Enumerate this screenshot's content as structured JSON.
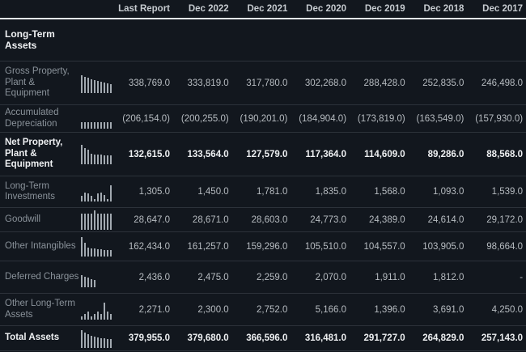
{
  "table": {
    "columns": [
      "Last Report",
      "Dec 2022",
      "Dec 2021",
      "Dec 2020",
      "Dec 2019",
      "Dec 2018",
      "Dec 2017"
    ],
    "section_title": "Long-Term Assets",
    "rows": [
      {
        "label": "Gross Property, Plant & Equipment",
        "values": [
          "338,769.0",
          "333,819.0",
          "317,780.0",
          "302,268.0",
          "288,428.0",
          "252,835.0",
          "246,498.0"
        ],
        "spark": [
          22,
          20,
          19,
          17,
          16,
          15,
          14,
          13,
          12,
          11
        ]
      },
      {
        "label": "Accumulated Depreciation",
        "values": [
          "(206,154.0)",
          "(200,255.0)",
          "(190,201.0)",
          "(184,904.0)",
          "(173,819.0)",
          "(163,549.0)",
          "(157,930.0)"
        ],
        "spark": [
          8,
          8,
          8,
          8,
          8,
          8,
          8,
          8,
          8,
          8
        ]
      },
      {
        "label": "Net Property, Plant & Equipment",
        "values": [
          "132,615.0",
          "133,564.0",
          "127,579.0",
          "117,364.0",
          "114,609.0",
          "89,286.0",
          "88,568.0"
        ],
        "spark": [
          24,
          20,
          18,
          13,
          12,
          12,
          12,
          11,
          11,
          11
        ]
      },
      {
        "label": "Long-Term Investments",
        "values": [
          "1,305.0",
          "1,450.0",
          "1,781.0",
          "1,835.0",
          "1,568.0",
          "1,093.0",
          "1,539.0"
        ],
        "spark": [
          7,
          11,
          10,
          7,
          3,
          10,
          11,
          8,
          3,
          20
        ]
      },
      {
        "label": "Goodwill",
        "values": [
          "28,647.0",
          "28,671.0",
          "28,603.0",
          "24,773.0",
          "24,389.0",
          "24,614.0",
          "29,172.0"
        ],
        "spark": [
          20,
          20,
          20,
          20,
          24,
          20,
          20,
          20,
          20,
          20
        ]
      },
      {
        "label": "Other Intangibles",
        "values": [
          "162,434.0",
          "161,257.0",
          "159,296.0",
          "105,510.0",
          "104,557.0",
          "103,905.0",
          "98,664.0"
        ],
        "spark": [
          24,
          17,
          11,
          10,
          10,
          9,
          9,
          8,
          8,
          8
        ]
      },
      {
        "label": "Deferred Charges",
        "values": [
          "2,436.0",
          "2,475.0",
          "2,259.0",
          "2,070.0",
          "1,911.0",
          "1,812.0",
          "-"
        ],
        "spark": [
          15,
          13,
          12,
          10,
          9
        ]
      },
      {
        "label": "Other Long-Term Assets",
        "values": [
          "2,271.0",
          "2,300.0",
          "2,752.0",
          "5,166.0",
          "1,396.0",
          "3,691.0",
          "4,250.0"
        ],
        "spark": [
          4,
          7,
          10,
          4,
          7,
          10,
          7,
          21,
          10,
          7
        ]
      },
      {
        "label": "Total Assets",
        "values": [
          "379,955.0",
          "379,680.0",
          "366,596.0",
          "316,481.0",
          "291,727.0",
          "264,829.0",
          "257,143.0"
        ],
        "spark": [
          22,
          19,
          17,
          15,
          14,
          13,
          12,
          12,
          11,
          11
        ]
      }
    ]
  },
  "colors": {
    "background": "#12171e",
    "divider": "#2c323a",
    "header_underline": "#e3e6e9",
    "label_text": "#8a929a",
    "value_text": "#b7bcc1",
    "bold_text": "#eef0f2",
    "sparkline_bar": "#a2a9b0"
  }
}
